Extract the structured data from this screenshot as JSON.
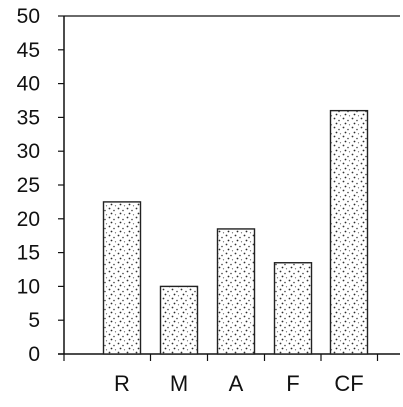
{
  "chart_data": {
    "type": "bar",
    "categories": [
      "R",
      "M",
      "A",
      "F",
      "CF"
    ],
    "values": [
      22.5,
      10,
      18.5,
      13.5,
      36
    ],
    "ylim": [
      0,
      50
    ],
    "yticks": [
      0,
      5,
      10,
      15,
      20,
      25,
      30,
      35,
      40,
      45,
      50
    ],
    "title": "",
    "xlabel": "",
    "ylabel": "",
    "grid": false,
    "legend": "none",
    "colors": {
      "bar_outline": "#222222",
      "bar_stipple": "#333333",
      "axis": "#111111"
    }
  }
}
